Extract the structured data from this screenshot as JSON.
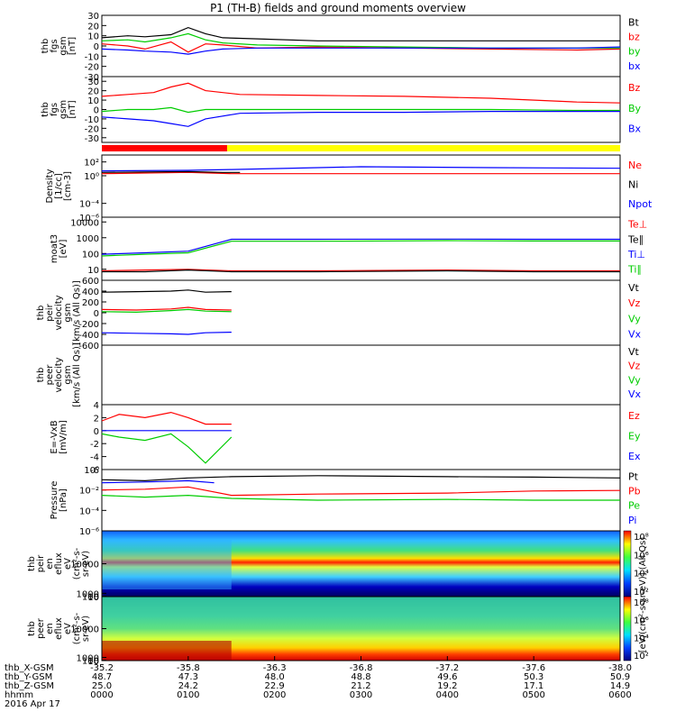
{
  "title": "P1 (TH-B) fields and ground moments overview",
  "date": "2016 Apr 17",
  "chart_data": [
    {
      "type": "line",
      "ylabel": [
        "thb",
        "fgs",
        "gsm",
        "[nT]"
      ],
      "ylim": [
        -30,
        30
      ],
      "yticks": [
        30,
        20,
        10,
        0,
        -10,
        -20,
        -30
      ],
      "ytick_labels": [
        "30",
        "20",
        "10",
        "0",
        "-10",
        "-20",
        "-30"
      ],
      "legend": [
        {
          "name": "Bt",
          "color": "#000000"
        },
        {
          "name": "bz",
          "color": "#ff0000"
        },
        {
          "name": "by",
          "color": "#00cc00"
        },
        {
          "name": "bx",
          "color": "#0000ff"
        }
      ],
      "series": [
        {
          "name": "Bt",
          "color": "#000000",
          "x": [
            0,
            0.3,
            0.5,
            0.8,
            1.0,
            1.2,
            1.4,
            1.8,
            2.5,
            3.5,
            4.5,
            5.5,
            6.0
          ],
          "y": [
            8,
            10,
            9,
            11,
            18,
            12,
            8,
            7,
            5,
            5,
            5,
            5,
            5
          ]
        },
        {
          "name": "bz",
          "color": "#ff0000",
          "x": [
            0,
            0.3,
            0.5,
            0.8,
            1.0,
            1.2,
            1.4,
            1.8,
            2.5,
            3.5,
            4.5,
            5.5,
            6.0
          ],
          "y": [
            2,
            0,
            -3,
            4,
            -6,
            2,
            1,
            -2,
            -1,
            -2,
            -3,
            -4,
            -3
          ]
        },
        {
          "name": "by",
          "color": "#00cc00",
          "x": [
            0,
            0.3,
            0.5,
            0.8,
            1.0,
            1.2,
            1.4,
            1.8,
            2.5,
            3.5,
            4.5,
            5.5,
            6.0
          ],
          "y": [
            5,
            6,
            4,
            8,
            12,
            6,
            3,
            1,
            0,
            -1,
            -2,
            -2,
            -2
          ]
        },
        {
          "name": "bx",
          "color": "#0000ff",
          "x": [
            0,
            0.3,
            0.5,
            0.8,
            1.0,
            1.2,
            1.4,
            1.8,
            2.5,
            3.5,
            4.5,
            5.5,
            6.0
          ],
          "y": [
            -3,
            -4,
            -5,
            -6,
            -8,
            -5,
            -3,
            -2,
            -2,
            -2,
            -2,
            -2,
            -1
          ]
        }
      ]
    },
    {
      "type": "line",
      "ylabel": [
        "thb",
        "fgs",
        "gsm",
        "[nT]"
      ],
      "ylim": [
        -35,
        35
      ],
      "yticks": [
        30,
        20,
        10,
        0,
        -10,
        -20,
        -30
      ],
      "ytick_labels": [
        "30",
        "20",
        "10",
        "0",
        "-10",
        "-20",
        "-30"
      ],
      "legend": [
        {
          "name": "Bz",
          "color": "#ff0000"
        },
        {
          "name": "By",
          "color": "#00cc00"
        },
        {
          "name": "Bx",
          "color": "#0000ff"
        }
      ],
      "series": [
        {
          "name": "Bz",
          "color": "#ff0000",
          "x": [
            0,
            0.3,
            0.6,
            0.8,
            1.0,
            1.2,
            1.6,
            2.5,
            3.5,
            4.5,
            5.5,
            6.0
          ],
          "y": [
            14,
            16,
            18,
            24,
            28,
            20,
            16,
            15,
            14,
            12,
            8,
            7
          ]
        },
        {
          "name": "By",
          "color": "#00cc00",
          "x": [
            0,
            0.3,
            0.6,
            0.8,
            1.0,
            1.2,
            1.6,
            2.5,
            3.5,
            4.5,
            5.5,
            6.0
          ],
          "y": [
            -2,
            0,
            0,
            2,
            -3,
            0,
            0,
            0,
            0,
            0,
            -1,
            -1
          ]
        },
        {
          "name": "Bx",
          "color": "#0000ff",
          "x": [
            0,
            0.3,
            0.6,
            0.8,
            1.0,
            1.2,
            1.6,
            2.5,
            3.5,
            4.5,
            5.5,
            6.0
          ],
          "y": [
            -8,
            -10,
            -12,
            -15,
            -18,
            -10,
            -4,
            -3,
            -3,
            -2,
            -2,
            -2
          ]
        }
      ]
    },
    {
      "type": "line",
      "ylabel": [
        "Density",
        "[1/cc]",
        "[cm-3]"
      ],
      "log": true,
      "ylim": [
        1e-06,
        1000.0
      ],
      "yticks": [
        100,
        1,
        0.0001,
        1e-06
      ],
      "ytick_labels": [
        "10²",
        "10⁰",
        "10⁻⁴",
        "10⁻⁶"
      ],
      "legend": [
        {
          "name": "Ne",
          "color": "#ff0000"
        },
        {
          "name": "Ni",
          "color": "#000000"
        },
        {
          "name": "Npot",
          "color": "#0000ff"
        }
      ],
      "series": [
        {
          "name": "Ne",
          "color": "#ff0000",
          "x": [
            0,
            1,
            1.5,
            3,
            4.5,
            6.0
          ],
          "y": [
            2,
            3,
            2,
            2,
            2,
            2
          ]
        },
        {
          "name": "Ni",
          "color": "#000000",
          "x": [
            0,
            1,
            1.4,
            1.6
          ],
          "y": [
            3,
            4,
            3,
            3
          ]
        },
        {
          "name": "Npot",
          "color": "#0000ff",
          "x": [
            0,
            1,
            1.5,
            3,
            4.5,
            6.0
          ],
          "y": [
            5,
            6,
            8,
            20,
            15,
            12
          ]
        }
      ]
    },
    {
      "type": "line",
      "ylabel": [
        "moat3",
        "[eV]"
      ],
      "log": true,
      "ylim": [
        2,
        20000
      ],
      "yticks": [
        10000,
        1000,
        100,
        10
      ],
      "ytick_labels": [
        "10000",
        "1000",
        "100",
        "10"
      ],
      "legend": [
        {
          "name": "Te⊥",
          "color": "#ff0000"
        },
        {
          "name": "Te∥",
          "color": "#000000"
        },
        {
          "name": "Ti⊥",
          "color": "#0000ff"
        },
        {
          "name": "Ti∥",
          "color": "#00cc00"
        }
      ],
      "series": [
        {
          "name": "Te⊥",
          "color": "#ff0000",
          "x": [
            0,
            0.5,
            1,
            1.5,
            2.5,
            4,
            5,
            6.0
          ],
          "y": [
            8,
            9,
            10,
            8,
            8,
            9,
            8,
            8
          ]
        },
        {
          "name": "Te∥",
          "color": "#000000",
          "x": [
            0,
            0.5,
            1,
            1.5,
            2.5,
            4,
            5,
            6.0
          ],
          "y": [
            7,
            7,
            9,
            7,
            7,
            8,
            7,
            7
          ]
        },
        {
          "name": "Ti⊥",
          "color": "#0000ff",
          "x": [
            0,
            0.5,
            1,
            1.5,
            2.5,
            4,
            5,
            6.0
          ],
          "y": [
            90,
            110,
            140,
            800,
            800,
            820,
            800,
            800
          ]
        },
        {
          "name": "Ti∥",
          "color": "#00cc00",
          "x": [
            0,
            0.5,
            1,
            1.5,
            2.5,
            4,
            5,
            6.0
          ],
          "y": [
            70,
            90,
            110,
            600,
            600,
            650,
            620,
            620
          ]
        }
      ]
    },
    {
      "type": "line",
      "ylabel": [
        "thb",
        "peir",
        "velocity",
        "gsm",
        "[km/s (All Qs)]"
      ],
      "ylim": [
        -600,
        600
      ],
      "yticks": [
        600,
        400,
        200,
        0,
        -200,
        -400,
        -600
      ],
      "ytick_labels": [
        "600",
        "400",
        "200",
        "0",
        "-200",
        "-400",
        "-600"
      ],
      "legend": [
        {
          "name": "Vt",
          "color": "#000000"
        },
        {
          "name": "Vz",
          "color": "#ff0000"
        },
        {
          "name": "Vy",
          "color": "#00cc00"
        },
        {
          "name": "Vx",
          "color": "#0000ff"
        }
      ],
      "series": [
        {
          "name": "Vt",
          "color": "#000000",
          "x": [
            0,
            0.4,
            0.8,
            1.0,
            1.2,
            1.5
          ],
          "y": [
            380,
            390,
            400,
            420,
            380,
            390
          ]
        },
        {
          "name": "Vz",
          "color": "#ff0000",
          "x": [
            0,
            0.4,
            0.8,
            1.0,
            1.2,
            1.5
          ],
          "y": [
            60,
            50,
            70,
            100,
            60,
            50
          ]
        },
        {
          "name": "Vy",
          "color": "#00cc00",
          "x": [
            0,
            0.4,
            0.8,
            1.0,
            1.2,
            1.5
          ],
          "y": [
            20,
            10,
            40,
            60,
            30,
            20
          ]
        },
        {
          "name": "Vx",
          "color": "#0000ff",
          "x": [
            0,
            0.4,
            0.8,
            1.0,
            1.2,
            1.5
          ],
          "y": [
            -370,
            -380,
            -390,
            -400,
            -370,
            -360
          ]
        }
      ]
    },
    {
      "type": "line",
      "ylabel": [
        "thb",
        "peer",
        "velocity",
        "gsm",
        "[km/s (All Qs)]"
      ],
      "ylim": [
        0,
        1
      ],
      "yticks": [],
      "ytick_labels": [],
      "legend": [
        {
          "name": "Vt",
          "color": "#000000"
        },
        {
          "name": "Vz",
          "color": "#ff0000"
        },
        {
          "name": "Vy",
          "color": "#00cc00"
        },
        {
          "name": "Vx",
          "color": "#0000ff"
        }
      ],
      "series": []
    },
    {
      "type": "line",
      "ylabel": [
        "E=-VxB",
        "[mV/m]"
      ],
      "ylim": [
        -6,
        4
      ],
      "yticks": [
        4,
        2,
        0,
        -2,
        -4,
        -6
      ],
      "ytick_labels": [
        "4",
        "2",
        "0",
        "-2",
        "-4",
        "-6"
      ],
      "legend": [
        {
          "name": "Ez",
          "color": "#ff0000"
        },
        {
          "name": "Ey",
          "color": "#00cc00"
        },
        {
          "name": "Ex",
          "color": "#0000ff"
        }
      ],
      "series": [
        {
          "name": "Ez",
          "color": "#ff0000",
          "x": [
            0,
            0.2,
            0.5,
            0.8,
            1.0,
            1.2,
            1.5
          ],
          "y": [
            1.5,
            2.5,
            2,
            2.8,
            2,
            1,
            1
          ]
        },
        {
          "name": "Ey",
          "color": "#00cc00",
          "x": [
            0,
            0.2,
            0.5,
            0.8,
            1.0,
            1.2,
            1.5
          ],
          "y": [
            -0.5,
            -1,
            -1.5,
            -0.5,
            -2.5,
            -5,
            -1
          ]
        },
        {
          "name": "Ex",
          "color": "#0000ff",
          "x": [
            0,
            0.2,
            0.5,
            0.8,
            1.0,
            1.2,
            1.5
          ],
          "y": [
            0,
            0,
            0,
            0,
            0,
            0,
            0
          ]
        }
      ]
    },
    {
      "type": "line",
      "ylabel": [
        "Pressure",
        "[nPa]"
      ],
      "log": true,
      "ylim": [
        1e-06,
        1
      ],
      "yticks": [
        1,
        0.01,
        0.0001,
        1e-06
      ],
      "ytick_labels": [
        "10⁰",
        "10⁻²",
        "10⁻⁴",
        "10⁻⁶"
      ],
      "legend": [
        {
          "name": "Pt",
          "color": "#000000"
        },
        {
          "name": "Pb",
          "color": "#ff0000"
        },
        {
          "name": "Pe",
          "color": "#00cc00"
        },
        {
          "name": "Pi",
          "color": "#0000ff"
        }
      ],
      "series": [
        {
          "name": "Pt",
          "color": "#000000",
          "x": [
            0,
            0.5,
            1,
            1.5,
            2.5,
            4,
            5,
            6.0
          ],
          "y": [
            0.1,
            0.08,
            0.15,
            0.2,
            0.25,
            0.2,
            0.18,
            0.15
          ]
        },
        {
          "name": "Pb",
          "color": "#ff0000",
          "x": [
            0,
            0.5,
            1,
            1.5,
            2.5,
            4,
            5,
            6.0
          ],
          "y": [
            0.01,
            0.012,
            0.02,
            0.003,
            0.004,
            0.005,
            0.008,
            0.009
          ]
        },
        {
          "name": "Pe",
          "color": "#00cc00",
          "x": [
            0,
            0.5,
            1,
            1.5,
            2.5,
            4,
            5,
            6.0
          ],
          "y": [
            0.003,
            0.002,
            0.003,
            0.0015,
            0.001,
            0.0012,
            0.001,
            0.001
          ]
        },
        {
          "name": "Pi",
          "color": "#0000ff",
          "x": [
            0,
            0.5,
            1,
            1.3
          ],
          "y": [
            0.05,
            0.06,
            0.08,
            0.05
          ]
        }
      ]
    },
    {
      "type": "heatmap",
      "ylabel": [
        "thb",
        "peir",
        "en",
        "eflux",
        "eV",
        "(cm²-s-",
        "sr-eV)"
      ],
      "ylim": [
        5,
        20000
      ],
      "yticks": [
        10000,
        1000,
        100,
        10
      ],
      "ytick_labels": [
        "10000",
        "1000",
        "100",
        "10"
      ],
      "colorbar_ticks": [
        "10⁸",
        "10⁶",
        "10⁴",
        "10²"
      ]
    },
    {
      "type": "heatmap",
      "ylabel": [
        "thb",
        "peer",
        "en",
        "eflux",
        "eV",
        "(cm²-s-",
        "sr-eV)"
      ],
      "ylim": [
        5,
        20000
      ],
      "yticks": [
        10000,
        1000,
        100,
        10
      ],
      "ytick_labels": [
        "10000",
        "1000",
        "100",
        "10"
      ],
      "colorbar_ticks": [
        "10⁸",
        "10⁶",
        "10⁴",
        "10²"
      ]
    }
  ],
  "colorbar_label": "[eV/(cm²-s-sr-eV)] (All Qs)",
  "xaxis": {
    "row_labels": [
      "thb_X-GSM",
      "thb_Y-GSM",
      "thb_Z-GSM",
      "hhmm"
    ],
    "columns": [
      {
        "values": [
          "-35.2",
          "48.7",
          "25.0",
          "0000"
        ]
      },
      {
        "values": [
          "-35.8",
          "47.3",
          "24.2",
          "0100"
        ]
      },
      {
        "values": [
          "-36.3",
          "48.0",
          "22.9",
          "0200"
        ]
      },
      {
        "values": [
          "-36.8",
          "48.8",
          "21.2",
          "0300"
        ]
      },
      {
        "values": [
          "-37.2",
          "49.6",
          "19.2",
          "0400"
        ]
      },
      {
        "values": [
          "-37.6",
          "50.3",
          "17.1",
          "0500"
        ]
      },
      {
        "values": [
          "-38.0",
          "50.9",
          "14.9",
          "0600"
        ]
      }
    ]
  }
}
